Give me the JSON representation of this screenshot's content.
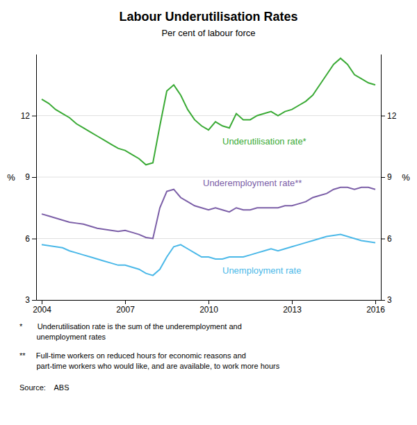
{
  "chart_data": {
    "type": "line",
    "title": "Labour Underutilisation Rates",
    "subtitle": "Per cent of labour force",
    "ylabel": "%",
    "y2label": "%",
    "footnotes": [
      "*       Underutilisation rate is the sum of the underemployment and\n        unemployment rates",
      "**     Full-time workers on reduced hours for economic reasons and\n        part-time workers who would like, and are available, to work more hours"
    ],
    "source": "Source:    ABS",
    "x": [
      2004.0,
      2004.25,
      2004.5,
      2004.75,
      2005.0,
      2005.25,
      2005.5,
      2005.75,
      2006.0,
      2006.25,
      2006.5,
      2006.75,
      2007.0,
      2007.25,
      2007.5,
      2007.75,
      2008.0,
      2008.25,
      2008.5,
      2008.75,
      2009.0,
      2009.25,
      2009.5,
      2009.75,
      2010.0,
      2010.25,
      2010.5,
      2010.75,
      2011.0,
      2011.25,
      2011.5,
      2011.75,
      2012.0,
      2012.25,
      2012.5,
      2012.75,
      2013.0,
      2013.25,
      2013.5,
      2013.75,
      2014.0,
      2014.25,
      2014.5,
      2014.75,
      2015.0,
      2015.25,
      2015.5,
      2015.75,
      2016.0
    ],
    "series": [
      {
        "name": "Underutilisation rate*",
        "color": "#3aaa35",
        "values": [
          12.8,
          12.6,
          12.3,
          12.1,
          11.9,
          11.6,
          11.4,
          11.2,
          11.0,
          10.8,
          10.6,
          10.4,
          10.3,
          10.1,
          9.9,
          9.6,
          9.7,
          11.5,
          13.2,
          13.5,
          13.0,
          12.3,
          11.8,
          11.5,
          11.3,
          11.7,
          11.5,
          11.4,
          12.1,
          11.8,
          11.8,
          12.0,
          12.1,
          12.2,
          12.0,
          12.2,
          12.3,
          12.5,
          12.7,
          13.0,
          13.5,
          14.0,
          14.5,
          14.8,
          14.5,
          14.0,
          13.8,
          13.6,
          13.5
        ]
      },
      {
        "name": "Underemployment rate**",
        "color": "#7b5ea7",
        "values": [
          7.2,
          7.1,
          7.0,
          6.9,
          6.8,
          6.75,
          6.7,
          6.6,
          6.5,
          6.45,
          6.4,
          6.35,
          6.4,
          6.3,
          6.2,
          6.05,
          6.0,
          7.5,
          8.3,
          8.4,
          8.0,
          7.8,
          7.6,
          7.5,
          7.4,
          7.5,
          7.4,
          7.3,
          7.5,
          7.4,
          7.4,
          7.5,
          7.5,
          7.5,
          7.5,
          7.6,
          7.6,
          7.7,
          7.8,
          8.0,
          8.1,
          8.2,
          8.4,
          8.5,
          8.5,
          8.4,
          8.5,
          8.5,
          8.4
        ]
      },
      {
        "name": "Unemployment rate",
        "color": "#4ab8e8",
        "values": [
          5.7,
          5.65,
          5.6,
          5.55,
          5.4,
          5.3,
          5.2,
          5.1,
          5.0,
          4.9,
          4.8,
          4.7,
          4.7,
          4.6,
          4.5,
          4.3,
          4.2,
          4.5,
          5.1,
          5.6,
          5.7,
          5.5,
          5.3,
          5.1,
          5.1,
          5.0,
          5.0,
          5.1,
          5.1,
          5.1,
          5.2,
          5.3,
          5.4,
          5.5,
          5.4,
          5.5,
          5.6,
          5.7,
          5.8,
          5.9,
          6.0,
          6.1,
          6.15,
          6.2,
          6.1,
          6.0,
          5.9,
          5.85,
          5.8
        ]
      }
    ],
    "xlim": [
      2003.8,
      2016.2
    ],
    "xticks": [
      2004,
      2007,
      2010,
      2013,
      2016
    ],
    "ylim": [
      3,
      15
    ],
    "yticks": [
      3,
      6,
      9,
      12
    ],
    "y2lim": [
      3,
      15
    ],
    "y2ticks": [
      3,
      6,
      9,
      12
    ],
    "grid": "y"
  }
}
